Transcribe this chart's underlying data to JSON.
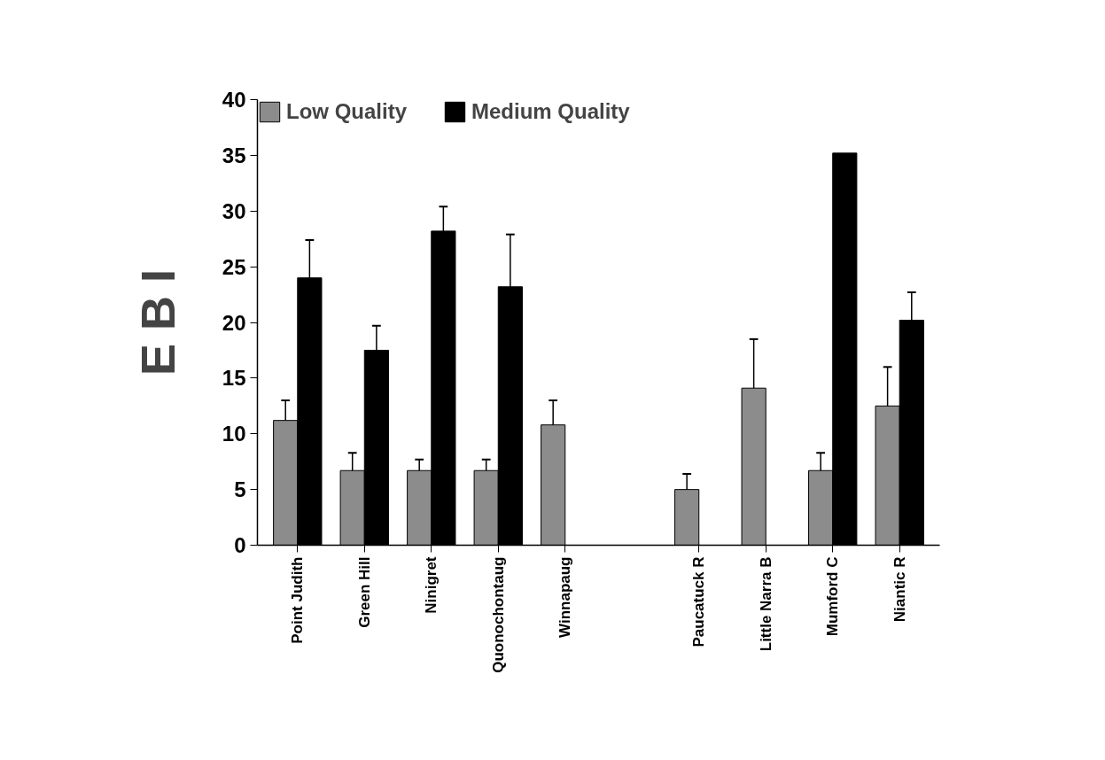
{
  "chart_data": {
    "type": "bar",
    "ylabel": "E B I",
    "categories": [
      "Point Judith",
      "Green Hill",
      "Ninigret",
      "Quonochontaug",
      "Winnapaug",
      null,
      "Paucatuck R",
      "Little Narra B",
      "Mumford C",
      "Niantic R"
    ],
    "series": [
      {
        "name": "Low Quality",
        "color": "#8c8c8c",
        "values": [
          11.2,
          6.7,
          6.7,
          6.7,
          10.8,
          null,
          5.0,
          14.1,
          6.7,
          12.5
        ],
        "errors": [
          [
            11.2,
            13.0
          ],
          [
            6.7,
            8.3
          ],
          [
            6.7,
            7.7
          ],
          [
            6.7,
            7.7
          ],
          [
            10.8,
            13.0
          ],
          null,
          [
            5.0,
            6.4
          ],
          [
            14.1,
            18.5
          ],
          [
            6.7,
            8.3
          ],
          [
            12.5,
            16.0
          ]
        ]
      },
      {
        "name": "Medium Quality",
        "color": "#000000",
        "values": [
          24.0,
          17.5,
          28.2,
          23.2,
          null,
          null,
          null,
          null,
          35.2,
          20.2
        ],
        "errors": [
          [
            24.0,
            27.4
          ],
          [
            17.5,
            19.7
          ],
          [
            28.2,
            30.4
          ],
          [
            23.2,
            27.9
          ],
          null,
          null,
          null,
          null,
          null,
          [
            20.2,
            22.7
          ]
        ]
      }
    ],
    "ylim": [
      0,
      40
    ],
    "yticks": [
      0,
      5,
      10,
      15,
      20,
      25,
      30,
      35,
      40
    ],
    "legend": "top left"
  }
}
